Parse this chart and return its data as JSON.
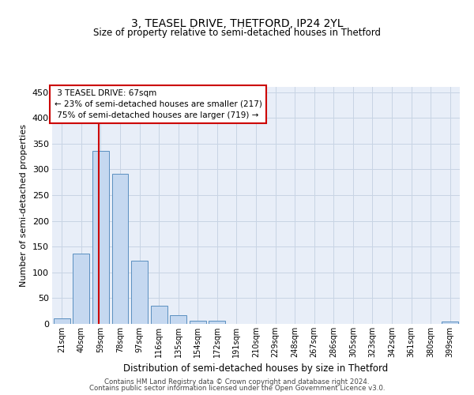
{
  "title": "3, TEASEL DRIVE, THETFORD, IP24 2YL",
  "subtitle": "Size of property relative to semi-detached houses in Thetford",
  "xlabel": "Distribution of semi-detached houses by size in Thetford",
  "ylabel": "Number of semi-detached properties",
  "footer_line1": "Contains HM Land Registry data © Crown copyright and database right 2024.",
  "footer_line2": "Contains public sector information licensed under the Open Government Licence v3.0.",
  "categories": [
    "21sqm",
    "40sqm",
    "59sqm",
    "78sqm",
    "97sqm",
    "116sqm",
    "135sqm",
    "154sqm",
    "172sqm",
    "191sqm",
    "210sqm",
    "229sqm",
    "248sqm",
    "267sqm",
    "286sqm",
    "305sqm",
    "323sqm",
    "342sqm",
    "361sqm",
    "380sqm",
    "399sqm"
  ],
  "values": [
    10,
    137,
    336,
    292,
    122,
    35,
    17,
    6,
    6,
    0,
    0,
    0,
    0,
    0,
    0,
    0,
    0,
    0,
    0,
    0,
    5
  ],
  "bar_color": "#c5d8f0",
  "bar_edge_color": "#5a8fc0",
  "grid_color": "#c8d4e4",
  "background_color": "#e8eef8",
  "vline_color": "#cc0000",
  "annotation_box_color": "#cc0000",
  "property_label": "3 TEASEL DRIVE: 67sqm",
  "pct_smaller": 23,
  "pct_smaller_n": 217,
  "pct_larger": 75,
  "pct_larger_n": 719,
  "ylim": [
    0,
    460
  ],
  "yticks": [
    0,
    50,
    100,
    150,
    200,
    250,
    300,
    350,
    400,
    450
  ],
  "title_fontsize": 10,
  "subtitle_fontsize": 8.5,
  "ylabel_fontsize": 8,
  "xlabel_fontsize": 8.5
}
